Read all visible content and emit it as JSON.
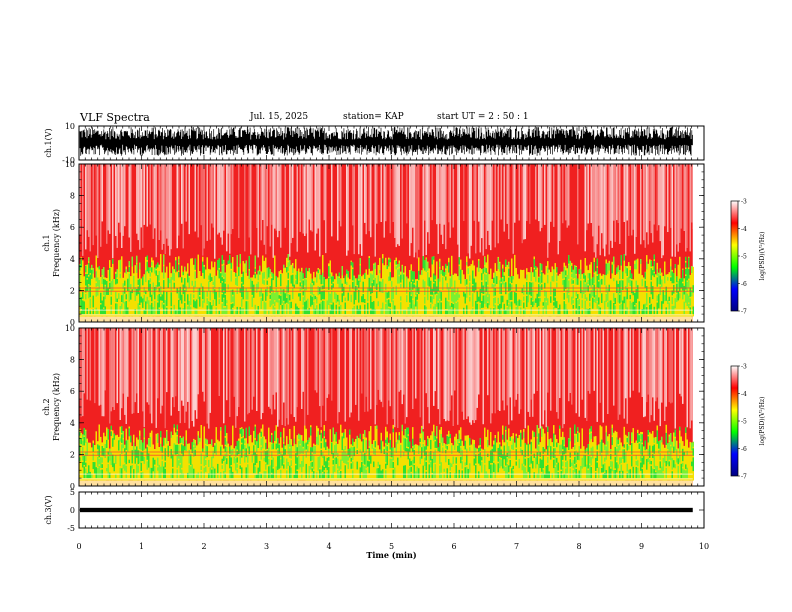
{
  "header": {
    "title": "VLF Spectra",
    "date": "Jul. 15, 2025",
    "station": "station= KAP",
    "start": "start  UT =   2 : 50 : 1"
  },
  "chart_data": {
    "type": "spectrogram",
    "x_axis": {
      "label": "Time (min)",
      "range": [
        0,
        10
      ],
      "ticks": [
        "0",
        "1",
        "2",
        "3",
        "4",
        "5",
        "6",
        "7",
        "8",
        "9",
        "10"
      ],
      "data_end": 9.82
    },
    "panels": [
      {
        "id": "ch1-waveform",
        "type": "line",
        "ylabel": "ch.1(V)",
        "ylim": [
          -10,
          10
        ],
        "yticks": [
          "10",
          "-10"
        ],
        "signal": "dense noise, mostly between -6 and +8 V"
      },
      {
        "id": "ch1-spectrogram",
        "type": "heatmap",
        "ylabel": "ch.1",
        "ylabel2": "Frequency (kHz)",
        "ylim": [
          0,
          10
        ],
        "yticks": [
          "0",
          "2",
          "4",
          "6",
          "8",
          "10"
        ],
        "band": {
          "strong_kHz": [
            0.3,
            3.6
          ],
          "note": "green/yellow band below ~3.5 kHz, red above"
        }
      },
      {
        "id": "ch2-spectrogram",
        "type": "heatmap",
        "ylabel": "ch.2",
        "ylabel2": "Frequency (kHz)",
        "ylim": [
          0,
          10
        ],
        "yticks": [
          "0",
          "2",
          "4",
          "6",
          "8",
          "10"
        ],
        "band": {
          "strong_kHz": [
            0.3,
            3.2
          ],
          "note": "green/yellow band below ~3 kHz, red above"
        }
      },
      {
        "id": "ch3-waveform",
        "type": "line",
        "ylabel": "ch.3(V)",
        "ylim": [
          -5,
          5
        ],
        "yticks": [
          "5",
          "0",
          "-5"
        ],
        "signal": "near-constant ~0 V thick trace"
      }
    ],
    "colorbar": {
      "label": "log(PSD)(V²/Hz)",
      "range": [
        -7,
        -3
      ],
      "ticks": [
        "-3",
        "-4",
        "-5",
        "-6",
        "-7"
      ],
      "colors": [
        "#ffffff",
        "#ff0000",
        "#ffff00",
        "#00ff00",
        "#0000ff",
        "#000080"
      ]
    }
  }
}
